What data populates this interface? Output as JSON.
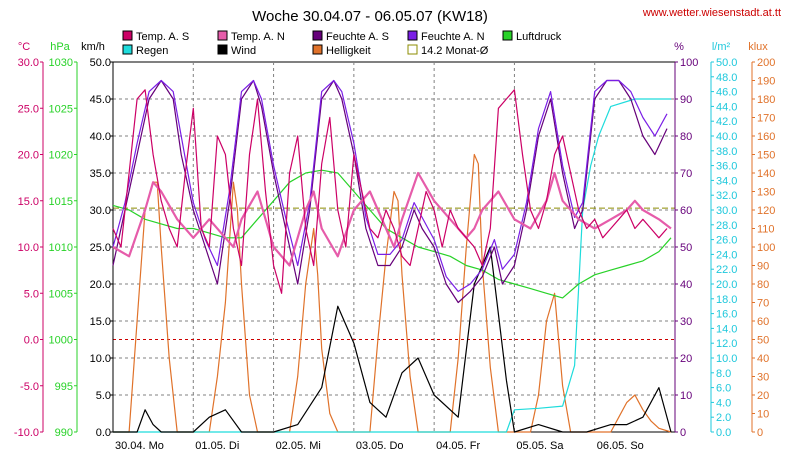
{
  "title": "Woche 30.04.07 - 06.05.07 (KW18)",
  "url": "www.wetter.wiesenstadt.at.tt",
  "colors": {
    "temp_s": "#cc0066",
    "temp_n": "#e65caa",
    "feuchte_s": "#66007a",
    "feuchte_n": "#7a1ee6",
    "regen": "#1edcdc",
    "wind": "#000000",
    "helligkeit": "#e0722a",
    "monat": "#8c8c00",
    "luftdruck": "#28d228",
    "celsius_axis": "#cc0066",
    "hpa_axis": "#28d228",
    "pct_axis": "#66007a",
    "lm2_axis": "#1ec8dc",
    "klux_axis": "#e0722a",
    "zero_line": "#cc0000",
    "grid": "#808080"
  },
  "chart_data": {
    "type": "line",
    "title": "Woche 30.04.07 - 06.05.07 (KW18)",
    "x_labels": [
      "30.04. Mo",
      "01.05. Di",
      "02.05. Mi",
      "03.05. Do",
      "04.05. Fr",
      "05.05. Sa",
      "06.05. So"
    ],
    "x_range": [
      0,
      7
    ],
    "axes": {
      "celsius": {
        "label": "°C",
        "range": [
          -10,
          30
        ],
        "ticks": [
          "30.0",
          "25.0",
          "20.0",
          "15.0",
          "10.0",
          "5.0",
          "0.0",
          "-5.0",
          "-10.0"
        ]
      },
      "hpa": {
        "label": "hPa",
        "range": [
          990,
          1030
        ],
        "ticks": [
          "1030",
          "1025",
          "1020",
          "1015",
          "1010",
          "1005",
          "1000",
          "995",
          "990"
        ]
      },
      "kmh": {
        "label": "km/h",
        "range": [
          0,
          50
        ],
        "ticks": [
          "50.0",
          "45.0",
          "40.0",
          "35.0",
          "30.0",
          "25.0",
          "20.0",
          "15.0",
          "10.0",
          "5.0",
          "0.0"
        ]
      },
      "percent": {
        "label": "%",
        "range": [
          0,
          100
        ],
        "ticks": [
          "100",
          "90",
          "80",
          "70",
          "60",
          "50",
          "40",
          "30",
          "20",
          "10",
          "0"
        ]
      },
      "lm2": {
        "label": "l/m²",
        "range": [
          0,
          50
        ],
        "ticks": [
          "50.0",
          "48.0",
          "46.0",
          "44.0",
          "42.0",
          "40.0",
          "38.0",
          "36.0",
          "34.0",
          "32.0",
          "30.0",
          "28.0",
          "26.0",
          "24.0",
          "22.0",
          "20.0",
          "18.0",
          "16.0",
          "14.0",
          "12.0",
          "10.0",
          "8.0",
          "6.0",
          "4.0",
          "2.0",
          "0.0"
        ]
      },
      "klux": {
        "label": "klux",
        "range": [
          0,
          200
        ],
        "ticks": [
          "200",
          "190",
          "180",
          "170",
          "160",
          "150",
          "140",
          "130",
          "120",
          "110",
          "100",
          "90",
          "80",
          "70",
          "60",
          "50",
          "40",
          "30",
          "20",
          "10",
          "0"
        ]
      }
    },
    "legend": [
      {
        "key": "temp_s",
        "label": "Temp. A. S"
      },
      {
        "key": "temp_n",
        "label": "Temp. A. N"
      },
      {
        "key": "feuchte_s",
        "label": "Feuchte A. S"
      },
      {
        "key": "feuchte_n",
        "label": "Feuchte A. N"
      },
      {
        "key": "luftdruck",
        "label": "Luftdruck"
      },
      {
        "key": "regen",
        "label": "Regen"
      },
      {
        "key": "wind",
        "label": "Wind"
      },
      {
        "key": "helligkeit",
        "label": "Helligkeit"
      },
      {
        "key": "monat",
        "label": "14.2 Monat-Ø"
      }
    ],
    "reference_lines": {
      "monat_avg_celsius": 14.2
    },
    "series": [
      {
        "key": "temp_s",
        "name": "Temp. A. S",
        "axis": "celsius",
        "x": [
          0,
          0.1,
          0.2,
          0.3,
          0.4,
          0.5,
          0.6,
          0.7,
          0.8,
          0.9,
          1.0,
          1.1,
          1.2,
          1.3,
          1.4,
          1.5,
          1.6,
          1.7,
          1.8,
          1.9,
          2.0,
          2.1,
          2.2,
          2.3,
          2.4,
          2.5,
          2.6,
          2.7,
          2.8,
          2.9,
          3.0,
          3.1,
          3.2,
          3.3,
          3.4,
          3.5,
          3.6,
          3.7,
          3.8,
          3.9,
          4.0,
          4.1,
          4.2,
          4.3,
          4.4,
          4.5,
          4.6,
          4.7,
          4.8,
          4.9,
          5.0,
          5.1,
          5.2,
          5.3,
          5.4,
          5.5,
          5.6,
          5.7,
          5.8,
          5.9,
          6.0,
          6.1,
          6.2,
          6.3,
          6.4,
          6.5,
          6.6,
          6.7,
          6.8,
          6.9
        ],
        "y": [
          12,
          10,
          18,
          26,
          27,
          20,
          15,
          12,
          10,
          18,
          25,
          12,
          10,
          22,
          20,
          12,
          8,
          20,
          26,
          16,
          8,
          5,
          18,
          22,
          12,
          8,
          19,
          24,
          14,
          10,
          20,
          16,
          12,
          11,
          14,
          12,
          9,
          8,
          12,
          16,
          14,
          10,
          14,
          12,
          11,
          10,
          8,
          12,
          25,
          26,
          27,
          20,
          14,
          12,
          15,
          20,
          22,
          18,
          14,
          12,
          13,
          11,
          12,
          13,
          14,
          12,
          13,
          12,
          11,
          12
        ]
      },
      {
        "key": "temp_n",
        "name": "Temp. A. N",
        "axis": "celsius",
        "x": [
          0,
          0.2,
          0.4,
          0.5,
          0.6,
          0.8,
          1.0,
          1.2,
          1.4,
          1.5,
          1.6,
          1.8,
          2.0,
          2.2,
          2.4,
          2.5,
          2.6,
          2.8,
          3.0,
          3.2,
          3.4,
          3.5,
          3.6,
          3.8,
          4.0,
          4.2,
          4.4,
          4.5,
          4.6,
          4.8,
          5.0,
          5.2,
          5.4,
          5.5,
          5.6,
          5.8,
          6.0,
          6.2,
          6.4,
          6.5,
          6.6,
          6.8,
          6.95
        ],
        "y": [
          10,
          9,
          14,
          17,
          16,
          13,
          11,
          13,
          11,
          10,
          13,
          16,
          10,
          8,
          14,
          16,
          12,
          9,
          14,
          16,
          12,
          10,
          13,
          18,
          15,
          13,
          11,
          12,
          14,
          16,
          13,
          12,
          15,
          18,
          15,
          13,
          12,
          13,
          14,
          15,
          14,
          13,
          12
        ]
      },
      {
        "key": "feuchte_s",
        "name": "Feuchte A. S",
        "axis": "percent",
        "x": [
          0,
          0.15,
          0.3,
          0.45,
          0.6,
          0.75,
          0.85,
          1.0,
          1.15,
          1.3,
          1.45,
          1.6,
          1.75,
          1.85,
          2.0,
          2.15,
          2.3,
          2.45,
          2.6,
          2.75,
          2.85,
          3.0,
          3.15,
          3.3,
          3.45,
          3.6,
          3.75,
          3.85,
          4.0,
          4.15,
          4.3,
          4.45,
          4.6,
          4.75,
          4.85,
          5.0,
          5.15,
          5.3,
          5.45,
          5.6,
          5.75,
          5.85,
          6.0,
          6.15,
          6.3,
          6.45,
          6.6,
          6.75,
          6.9
        ],
        "y": [
          45,
          60,
          75,
          90,
          95,
          90,
          75,
          60,
          50,
          40,
          62,
          90,
          95,
          88,
          70,
          55,
          40,
          60,
          90,
          95,
          90,
          75,
          55,
          45,
          45,
          50,
          60,
          55,
          50,
          40,
          35,
          38,
          42,
          50,
          40,
          45,
          60,
          80,
          90,
          70,
          55,
          60,
          90,
          95,
          95,
          90,
          80,
          75,
          82
        ]
      },
      {
        "key": "feuchte_n",
        "name": "Feuchte A. N",
        "axis": "percent",
        "x": [
          0,
          0.15,
          0.3,
          0.45,
          0.6,
          0.75,
          0.85,
          1.0,
          1.15,
          1.3,
          1.45,
          1.6,
          1.75,
          1.85,
          2.0,
          2.15,
          2.3,
          2.45,
          2.6,
          2.75,
          2.85,
          3.0,
          3.15,
          3.3,
          3.45,
          3.6,
          3.75,
          3.85,
          4.0,
          4.15,
          4.3,
          4.45,
          4.6,
          4.75,
          4.85,
          5.0,
          5.15,
          5.3,
          5.45,
          5.6,
          5.75,
          5.85,
          6.0,
          6.15,
          6.3,
          6.45,
          6.6,
          6.75,
          6.9
        ],
        "y": [
          50,
          62,
          78,
          92,
          95,
          92,
          80,
          62,
          52,
          45,
          65,
          92,
          95,
          90,
          72,
          58,
          45,
          62,
          92,
          95,
          92,
          78,
          58,
          48,
          48,
          52,
          62,
          58,
          52,
          42,
          38,
          40,
          44,
          52,
          44,
          48,
          62,
          82,
          92,
          72,
          58,
          62,
          92,
          95,
          95,
          92,
          85,
          80,
          86
        ]
      },
      {
        "key": "luftdruck",
        "name": "Luftdruck",
        "axis": "hpa",
        "x": [
          0,
          0.2,
          0.4,
          0.6,
          0.8,
          1.0,
          1.2,
          1.4,
          1.6,
          1.8,
          2.0,
          2.2,
          2.4,
          2.6,
          2.8,
          3.0,
          3.2,
          3.4,
          3.6,
          3.8,
          4.0,
          4.2,
          4.4,
          4.6,
          4.8,
          5.0,
          5.2,
          5.4,
          5.6,
          5.8,
          6.0,
          6.2,
          6.4,
          6.6,
          6.8,
          6.95
        ],
        "y": [
          1014.5,
          1014,
          1013,
          1012.5,
          1012,
          1012,
          1011.5,
          1011,
          1011,
          1013,
          1015,
          1017,
          1018,
          1018.3,
          1018,
          1016,
          1014,
          1012,
          1011,
          1010,
          1009.5,
          1009,
          1008,
          1007.5,
          1006.5,
          1006,
          1005.5,
          1005,
          1004.5,
          1006,
          1007,
          1007.5,
          1008,
          1008.5,
          1009.5,
          1011
        ]
      },
      {
        "key": "regen",
        "name": "Regen",
        "axis": "lm2",
        "x": [
          0,
          1,
          2,
          3,
          4,
          4.9,
          5.0,
          5.3,
          5.6,
          5.75,
          5.85,
          5.95,
          6.05,
          6.2,
          6.5,
          6.8,
          6.95
        ],
        "y": [
          0,
          0,
          0,
          0,
          0,
          0,
          3,
          3.2,
          3.5,
          9,
          30,
          36,
          40,
          44,
          45,
          45,
          45
        ]
      },
      {
        "key": "wind",
        "name": "Wind",
        "axis": "kmh",
        "x": [
          0,
          0.3,
          0.4,
          0.5,
          0.6,
          0.8,
          1.0,
          1.2,
          1.4,
          1.6,
          1.8,
          2.0,
          2.3,
          2.6,
          2.8,
          3.0,
          3.2,
          3.4,
          3.6,
          3.8,
          4.0,
          4.3,
          4.5,
          4.7,
          4.9,
          5.0,
          5.3,
          5.6,
          5.9,
          6.2,
          6.4,
          6.6,
          6.8,
          6.95
        ],
        "y": [
          0,
          0,
          3,
          1,
          0,
          0,
          0,
          2,
          3,
          0,
          0,
          0,
          1,
          6,
          17,
          12,
          4,
          2,
          8,
          10,
          5,
          2,
          20,
          25,
          7,
          0,
          1,
          0,
          0,
          1,
          1,
          2,
          6,
          0
        ]
      },
      {
        "key": "helligkeit",
        "name": "Helligkeit",
        "axis": "klux",
        "x": [
          0,
          0.2,
          0.3,
          0.4,
          0.5,
          0.55,
          0.6,
          0.7,
          0.8,
          1.0,
          1.2,
          1.3,
          1.4,
          1.5,
          1.55,
          1.6,
          1.7,
          1.8,
          2.0,
          2.2,
          2.3,
          2.4,
          2.5,
          2.55,
          2.6,
          2.7,
          2.8,
          3.0,
          3.2,
          3.3,
          3.4,
          3.5,
          3.55,
          3.6,
          3.7,
          3.8,
          4.0,
          4.2,
          4.3,
          4.4,
          4.5,
          4.55,
          4.6,
          4.7,
          4.8,
          5.0,
          5.2,
          5.3,
          5.4,
          5.5,
          5.6,
          5.7,
          5.8,
          6.0,
          6.2,
          6.3,
          6.4,
          6.5,
          6.6,
          6.7,
          6.8,
          6.95
        ],
        "y": [
          0,
          0,
          60,
          120,
          135,
          135,
          100,
          40,
          0,
          0,
          0,
          30,
          70,
          135,
          120,
          80,
          20,
          0,
          0,
          0,
          30,
          80,
          110,
          85,
          45,
          10,
          0,
          0,
          0,
          50,
          95,
          130,
          125,
          85,
          30,
          0,
          0,
          0,
          40,
          100,
          150,
          145,
          90,
          35,
          0,
          0,
          0,
          20,
          60,
          75,
          25,
          0,
          0,
          0,
          0,
          8,
          16,
          20,
          12,
          6,
          2,
          0
        ]
      }
    ]
  }
}
